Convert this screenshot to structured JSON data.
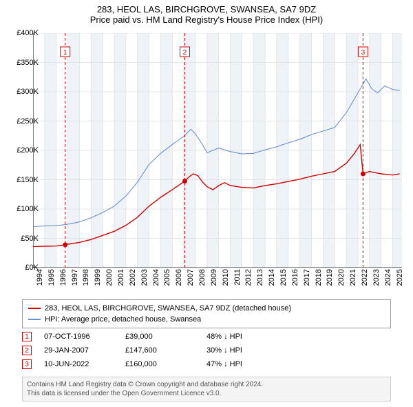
{
  "title": "283, HEOL LAS, BIRCHGROVE, SWANSEA, SA7 9DZ",
  "subtitle": "Price paid vs. HM Land Registry's House Price Index (HPI)",
  "chart": {
    "type": "line",
    "xlim": [
      1994,
      2025.8
    ],
    "ylim": [
      0,
      400000
    ],
    "ytick_step": 50000,
    "yticks": [
      "£0K",
      "£50K",
      "£100K",
      "£150K",
      "£200K",
      "£250K",
      "£300K",
      "£350K",
      "£400K"
    ],
    "xticks": [
      1994,
      1995,
      1996,
      1997,
      1998,
      1999,
      2000,
      2001,
      2002,
      2003,
      2004,
      2005,
      2006,
      2007,
      2008,
      2009,
      2010,
      2011,
      2012,
      2013,
      2014,
      2015,
      2016,
      2017,
      2018,
      2019,
      2020,
      2021,
      2022,
      2023,
      2024,
      2025
    ],
    "background_color": "#ffffff",
    "grid_color": "#e4e4e8",
    "band_color": "#eef3f8",
    "band_years": [
      [
        1995,
        1996
      ],
      [
        1997,
        1998
      ],
      [
        1999,
        2000
      ],
      [
        2001,
        2002
      ],
      [
        2003,
        2004
      ],
      [
        2005,
        2006
      ],
      [
        2007,
        2008
      ],
      [
        2009,
        2010
      ],
      [
        2011,
        2012
      ],
      [
        2013,
        2014
      ],
      [
        2015,
        2016
      ],
      [
        2017,
        2018
      ],
      [
        2019,
        2020
      ],
      [
        2021,
        2022
      ],
      [
        2023,
        2024
      ],
      [
        2025,
        2025.8
      ]
    ],
    "axis_color": "#000000",
    "label_fontsize": 11
  },
  "series": {
    "property": {
      "label": "283, HEOL LAS, BIRCHGROVE, SWANSEA, SA7 9DZ (detached house)",
      "color": "#d40000",
      "line_width": 1.4,
      "points": [
        [
          1994.0,
          36000
        ],
        [
          1995.0,
          36500
        ],
        [
          1996.0,
          37000
        ],
        [
          1996.77,
          39000
        ],
        [
          1997.0,
          40000
        ],
        [
          1998.0,
          43000
        ],
        [
          1999.0,
          48000
        ],
        [
          2000.0,
          55000
        ],
        [
          2001.0,
          62000
        ],
        [
          2002.0,
          72000
        ],
        [
          2003.0,
          86000
        ],
        [
          2004.0,
          105000
        ],
        [
          2005.0,
          120000
        ],
        [
          2006.0,
          133000
        ],
        [
          2007.08,
          147600
        ],
        [
          2007.4,
          154000
        ],
        [
          2007.8,
          160000
        ],
        [
          2008.2,
          157000
        ],
        [
          2008.6,
          146000
        ],
        [
          2009.0,
          138000
        ],
        [
          2009.5,
          133000
        ],
        [
          2010.0,
          140000
        ],
        [
          2010.5,
          145000
        ],
        [
          2011.0,
          140000
        ],
        [
          2012.0,
          137000
        ],
        [
          2013.0,
          136000
        ],
        [
          2014.0,
          140000
        ],
        [
          2015.0,
          143000
        ],
        [
          2016.0,
          147000
        ],
        [
          2017.0,
          151000
        ],
        [
          2018.0,
          156000
        ],
        [
          2019.0,
          160000
        ],
        [
          2020.0,
          164000
        ],
        [
          2021.0,
          178000
        ],
        [
          2021.7,
          195000
        ],
        [
          2022.2,
          210000
        ],
        [
          2022.44,
          160000
        ],
        [
          2023.0,
          164000
        ],
        [
          2024.0,
          160000
        ],
        [
          2025.0,
          158000
        ],
        [
          2025.6,
          160000
        ]
      ]
    },
    "hpi": {
      "label": "HPI: Average price, detached house, Swansea",
      "color": "#6a8fcf",
      "line_width": 1.1,
      "points": [
        [
          1994.0,
          70000
        ],
        [
          1995.0,
          71000
        ],
        [
          1996.0,
          71500
        ],
        [
          1997.0,
          74000
        ],
        [
          1998.0,
          78000
        ],
        [
          1999.0,
          85000
        ],
        [
          2000.0,
          94000
        ],
        [
          2001.0,
          105000
        ],
        [
          2002.0,
          122000
        ],
        [
          2003.0,
          146000
        ],
        [
          2004.0,
          176000
        ],
        [
          2005.0,
          195000
        ],
        [
          2006.0,
          210000
        ],
        [
          2007.0,
          224000
        ],
        [
          2007.6,
          236000
        ],
        [
          2008.0,
          228000
        ],
        [
          2008.6,
          210000
        ],
        [
          2009.0,
          196000
        ],
        [
          2010.0,
          204000
        ],
        [
          2011.0,
          198000
        ],
        [
          2012.0,
          194000
        ],
        [
          2013.0,
          195000
        ],
        [
          2014.0,
          201000
        ],
        [
          2015.0,
          206000
        ],
        [
          2016.0,
          213000
        ],
        [
          2017.0,
          219000
        ],
        [
          2018.0,
          227000
        ],
        [
          2019.0,
          233000
        ],
        [
          2020.0,
          239000
        ],
        [
          2021.0,
          264000
        ],
        [
          2022.0,
          298000
        ],
        [
          2022.7,
          322000
        ],
        [
          2023.2,
          305000
        ],
        [
          2023.7,
          298000
        ],
        [
          2024.3,
          310000
        ],
        [
          2025.0,
          304000
        ],
        [
          2025.6,
          302000
        ]
      ]
    }
  },
  "sales": [
    {
      "n": "1",
      "year": 1996.77,
      "date": "07-OCT-1996",
      "price": "£39,000",
      "delta": "48% ↓ HPI",
      "price_val": 39000
    },
    {
      "n": "2",
      "year": 2007.08,
      "date": "29-JAN-2007",
      "price": "£147,600",
      "delta": "30% ↓ HPI",
      "price_val": 147600
    },
    {
      "n": "3",
      "year": 2022.44,
      "date": "10-JUN-2022",
      "price": "£160,000",
      "delta": "47% ↓ HPI",
      "price_val": 160000
    }
  ],
  "sale_marker": {
    "border_color": "#d40000",
    "fill_color": "#ffffff",
    "text_color": "#d40000",
    "dash": "4,3"
  },
  "attribution": {
    "line1": "Contains HM Land Registry data © Crown copyright and database right 2024.",
    "line2": "This data is licensed under the Open Government Licence v3.0."
  }
}
